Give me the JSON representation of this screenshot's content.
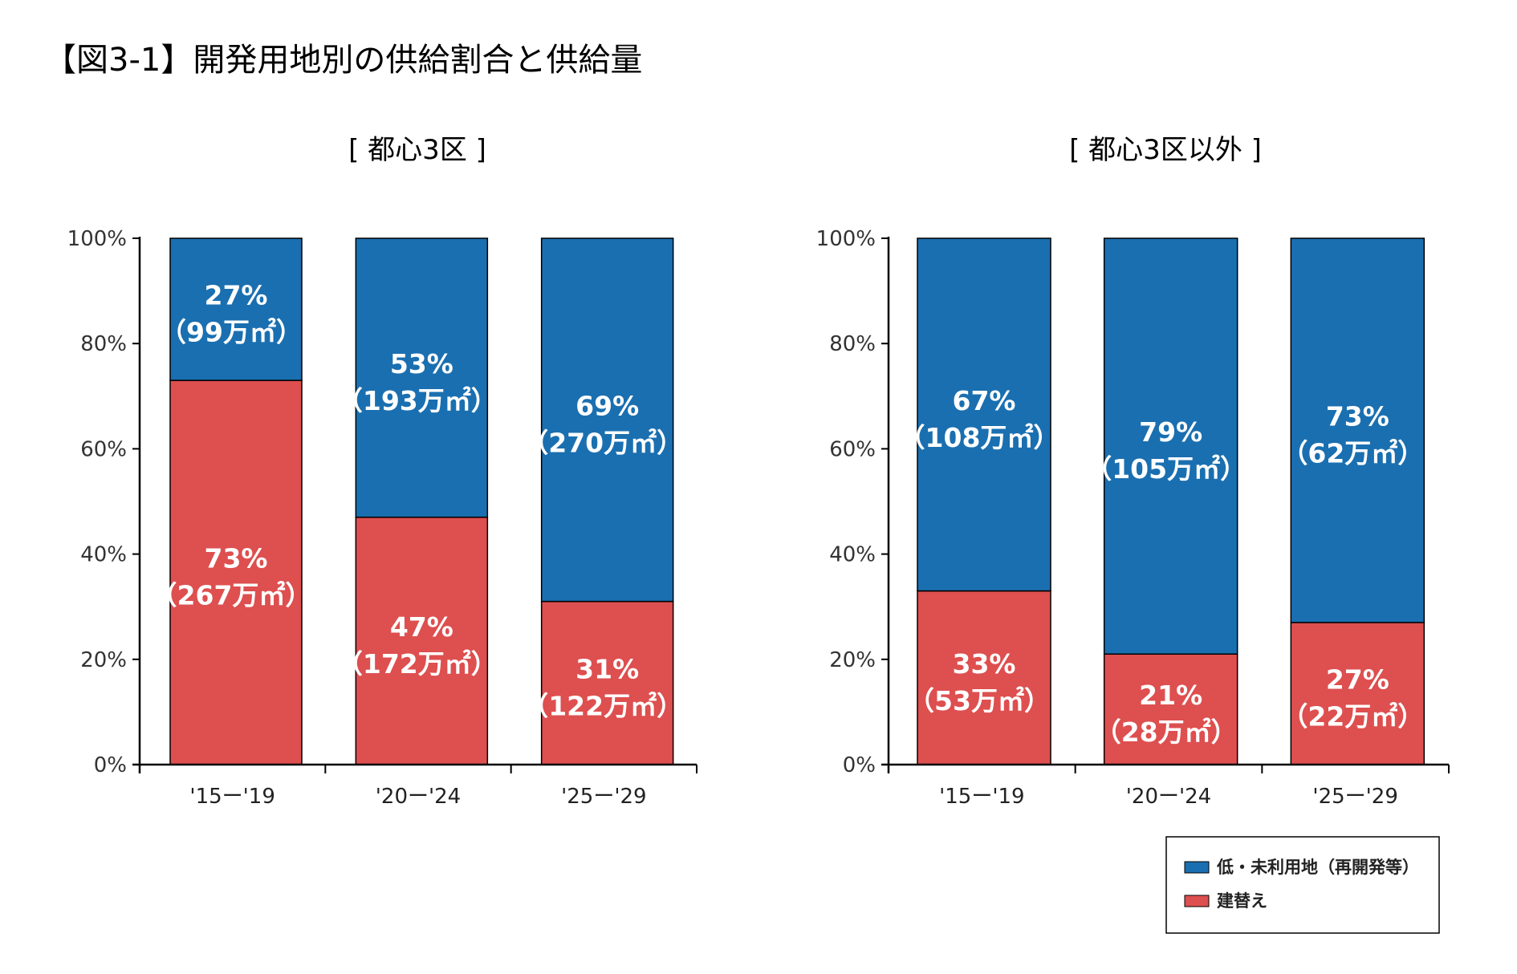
{
  "figure_title": "【図3-1】開発用地別の供給割合と供給量",
  "colors": {
    "blue": "#1A6FB0",
    "red": "#DE4F4F",
    "axis": "#000000"
  },
  "legend": {
    "items": [
      {
        "label": "低・未利用地（再開発等）",
        "color": "#1A6FB0"
      },
      {
        "label": "建替え",
        "color": "#DE4F4F"
      }
    ]
  },
  "chart_data": [
    {
      "type": "bar",
      "stacked": true,
      "title": "[ 都心3区 ]",
      "categories": [
        "'15ー'19",
        "'20ー'24",
        "'25ー'29"
      ],
      "yticks": [
        "0%",
        "20%",
        "40%",
        "60%",
        "80%",
        "100%"
      ],
      "ylim": [
        0,
        100
      ],
      "series": [
        {
          "name": "建替え",
          "values": [
            73,
            47,
            31
          ],
          "labels": [
            [
              "73%",
              "（267万㎡）"
            ],
            [
              "47%",
              "（172万㎡）"
            ],
            [
              "31%",
              "（122万㎡）"
            ]
          ]
        },
        {
          "name": "低・未利用地（再開発等）",
          "values": [
            27,
            53,
            69
          ],
          "labels": [
            [
              "27%",
              "（99万㎡）"
            ],
            [
              "53%",
              "（193万㎡）"
            ],
            [
              "69%",
              "（270万㎡）"
            ]
          ]
        }
      ]
    },
    {
      "type": "bar",
      "stacked": true,
      "title": "[ 都心3区以外 ]",
      "categories": [
        "'15ー'19",
        "'20ー'24",
        "'25ー'29"
      ],
      "yticks": [
        "0%",
        "20%",
        "40%",
        "60%",
        "80%",
        "100%"
      ],
      "ylim": [
        0,
        100
      ],
      "series": [
        {
          "name": "建替え",
          "values": [
            33,
            21,
            27
          ],
          "labels": [
            [
              "33%",
              "（53万㎡）"
            ],
            [
              "21%",
              "（28万㎡）"
            ],
            [
              "27%",
              "（22万㎡）"
            ]
          ]
        },
        {
          "name": "低・未利用地（再開発等）",
          "values": [
            67,
            79,
            73
          ],
          "labels": [
            [
              "67%",
              "（108万㎡）"
            ],
            [
              "79%",
              "（105万㎡）"
            ],
            [
              "73%",
              "（62万㎡）"
            ]
          ]
        }
      ]
    }
  ]
}
